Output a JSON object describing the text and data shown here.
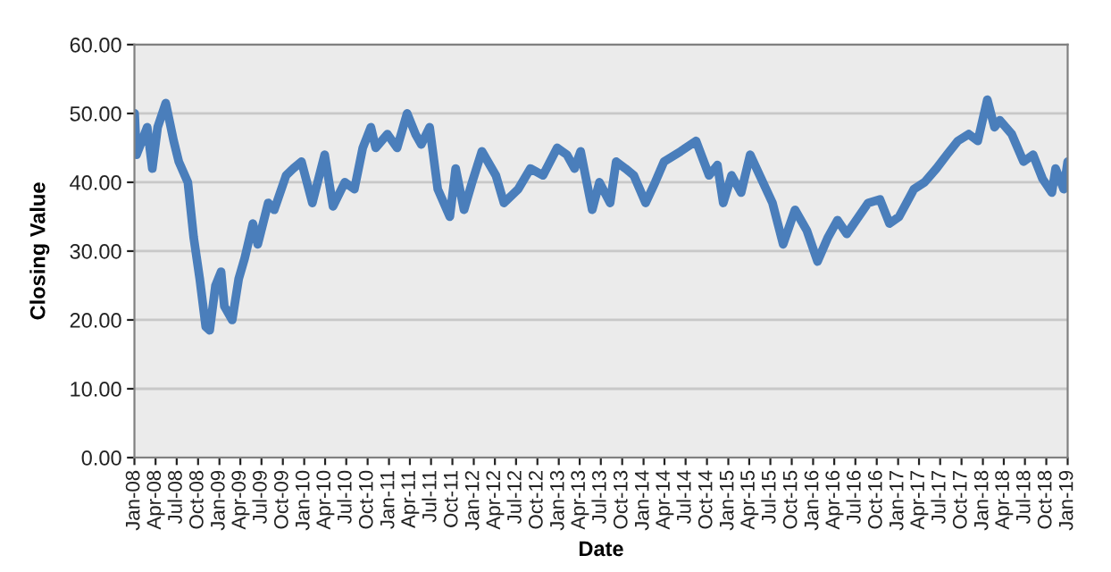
{
  "chart_data": {
    "type": "line",
    "xlabel": "Date",
    "ylabel": "Closing Value",
    "x": [
      "2008-01-02",
      "2008-01-10",
      "2008-02-25",
      "2008-03-18",
      "2008-04-10",
      "2008-05-15",
      "2008-06-18",
      "2008-07-10",
      "2008-08-18",
      "2008-09-12",
      "2008-10-08",
      "2008-11-03",
      "2008-11-20",
      "2008-12-15",
      "2009-01-08",
      "2009-01-22",
      "2009-02-25",
      "2009-03-25",
      "2009-04-20",
      "2009-05-25",
      "2009-06-15",
      "2009-07-30",
      "2009-08-25",
      "2009-10-15",
      "2009-11-15",
      "2009-12-20",
      "2010-02-05",
      "2010-03-30",
      "2010-05-05",
      "2010-06-25",
      "2010-08-05",
      "2010-09-10",
      "2010-10-15",
      "2010-11-05",
      "2010-12-25",
      "2011-02-05",
      "2011-03-20",
      "2011-04-25",
      "2011-05-20",
      "2011-06-25",
      "2011-07-30",
      "2011-09-20",
      "2011-10-15",
      "2011-11-20",
      "2011-12-25",
      "2012-02-05",
      "2012-04-05",
      "2012-05-10",
      "2012-07-10",
      "2012-09-01",
      "2012-10-25",
      "2012-12-25",
      "2013-02-05",
      "2013-03-10",
      "2013-04-05",
      "2013-05-25",
      "2013-06-25",
      "2013-08-10",
      "2013-09-05",
      "2013-10-15",
      "2013-11-20",
      "2014-01-10",
      "2014-02-20",
      "2014-03-30",
      "2014-06-10",
      "2014-08-15",
      "2014-10-10",
      "2014-11-15",
      "2014-12-10",
      "2015-01-15",
      "2015-02-25",
      "2015-04-05",
      "2015-05-30",
      "2015-07-10",
      "2015-08-25",
      "2015-10-15",
      "2015-12-05",
      "2016-01-20",
      "2016-03-05",
      "2016-04-15",
      "2016-05-25",
      "2016-07-05",
      "2016-08-25",
      "2016-10-15",
      "2016-11-25",
      "2017-01-05",
      "2017-03-10",
      "2017-04-25",
      "2017-06-15",
      "2017-07-30",
      "2017-09-15",
      "2017-11-01",
      "2017-12-10",
      "2018-01-20",
      "2018-02-20",
      "2018-03-15",
      "2018-05-05",
      "2018-06-25",
      "2018-08-05",
      "2018-09-15",
      "2018-10-25",
      "2018-11-10",
      "2018-12-15",
      "2019-01-01"
    ],
    "series": [
      {
        "color": "#4a7ebb",
        "values": [
          50,
          44,
          48,
          42,
          48,
          51.5,
          46,
          43,
          40,
          32,
          26,
          19,
          18.5,
          25,
          27,
          22,
          20,
          26,
          29,
          34,
          31,
          37,
          36,
          41,
          42,
          43,
          37,
          44,
          36.5,
          40,
          39,
          45,
          48,
          45,
          47,
          45,
          50,
          47,
          45.5,
          48,
          39,
          35,
          42,
          36,
          40,
          44.5,
          41,
          37,
          39,
          42,
          41,
          45,
          44,
          42,
          44.5,
          36,
          40,
          37,
          43,
          42,
          41,
          37,
          40,
          43,
          44.5,
          46,
          41,
          42.5,
          37,
          41,
          38.5,
          44,
          40,
          37,
          31,
          36,
          33,
          28.5,
          32,
          34.5,
          32.5,
          34.5,
          37,
          37.5,
          34,
          35,
          39,
          40,
          42,
          44,
          46,
          47,
          46,
          52,
          48,
          49,
          47,
          43,
          44,
          40.5,
          38.5,
          42,
          39,
          43
        ]
      }
    ],
    "xlim": [
      "2008-01-01",
      "2019-01-01"
    ],
    "xticks": [
      {
        "value": "2008-01-01",
        "label": "Jan-08"
      },
      {
        "value": "2008-04-01",
        "label": "Apr-08"
      },
      {
        "value": "2008-07-01",
        "label": "Jul-08"
      },
      {
        "value": "2008-10-01",
        "label": "Oct-08"
      },
      {
        "value": "2009-01-01",
        "label": "Jan-09"
      },
      {
        "value": "2009-04-01",
        "label": "Apr-09"
      },
      {
        "value": "2009-07-01",
        "label": "Jul-09"
      },
      {
        "value": "2009-10-01",
        "label": "Oct-09"
      },
      {
        "value": "2010-01-01",
        "label": "Jan-10"
      },
      {
        "value": "2010-04-01",
        "label": "Apr-10"
      },
      {
        "value": "2010-07-01",
        "label": "Jul-10"
      },
      {
        "value": "2010-10-01",
        "label": "Oct-10"
      },
      {
        "value": "2011-01-01",
        "label": "Jan-11"
      },
      {
        "value": "2011-04-01",
        "label": "Apr-11"
      },
      {
        "value": "2011-07-01",
        "label": "Jul-11"
      },
      {
        "value": "2011-10-01",
        "label": "Oct-11"
      },
      {
        "value": "2012-01-01",
        "label": "Jan-12"
      },
      {
        "value": "2012-04-01",
        "label": "Apr-12"
      },
      {
        "value": "2012-07-01",
        "label": "Jul-12"
      },
      {
        "value": "2012-10-01",
        "label": "Oct-12"
      },
      {
        "value": "2013-01-01",
        "label": "Jan-13"
      },
      {
        "value": "2013-04-01",
        "label": "Apr-13"
      },
      {
        "value": "2013-07-01",
        "label": "Jul-13"
      },
      {
        "value": "2013-10-01",
        "label": "Oct-13"
      },
      {
        "value": "2014-01-01",
        "label": "Jan-14"
      },
      {
        "value": "2014-04-01",
        "label": "Apr-14"
      },
      {
        "value": "2014-07-01",
        "label": "Jul-14"
      },
      {
        "value": "2014-10-01",
        "label": "Oct-14"
      },
      {
        "value": "2015-01-01",
        "label": "Jan-15"
      },
      {
        "value": "2015-04-01",
        "label": "Apr-15"
      },
      {
        "value": "2015-07-01",
        "label": "Jul-15"
      },
      {
        "value": "2015-10-01",
        "label": "Oct-15"
      },
      {
        "value": "2016-01-01",
        "label": "Jan-16"
      },
      {
        "value": "2016-04-01",
        "label": "Apr-16"
      },
      {
        "value": "2016-07-01",
        "label": "Jul-16"
      },
      {
        "value": "2016-10-01",
        "label": "Oct-16"
      },
      {
        "value": "2017-01-01",
        "label": "Jan-17"
      },
      {
        "value": "2017-04-01",
        "label": "Apr-17"
      },
      {
        "value": "2017-07-01",
        "label": "Jul-17"
      },
      {
        "value": "2017-10-01",
        "label": "Oct-17"
      },
      {
        "value": "2018-01-01",
        "label": "Jan-18"
      },
      {
        "value": "2018-04-01",
        "label": "Apr-18"
      },
      {
        "value": "2018-07-01",
        "label": "Jul-18"
      },
      {
        "value": "2018-10-01",
        "label": "Oct-18"
      },
      {
        "value": "2019-01-01",
        "label": "Jan-19"
      }
    ],
    "ylim": [
      0,
      60
    ],
    "yticks": [
      {
        "value": 0,
        "label": "0.00"
      },
      {
        "value": 10,
        "label": "10.00"
      },
      {
        "value": 20,
        "label": "20.00"
      },
      {
        "value": 30,
        "label": "30.00"
      },
      {
        "value": 40,
        "label": "40.00"
      },
      {
        "value": 50,
        "label": "50.00"
      },
      {
        "value": 60,
        "label": "60.00"
      }
    ],
    "grid": "y",
    "legend": false
  }
}
